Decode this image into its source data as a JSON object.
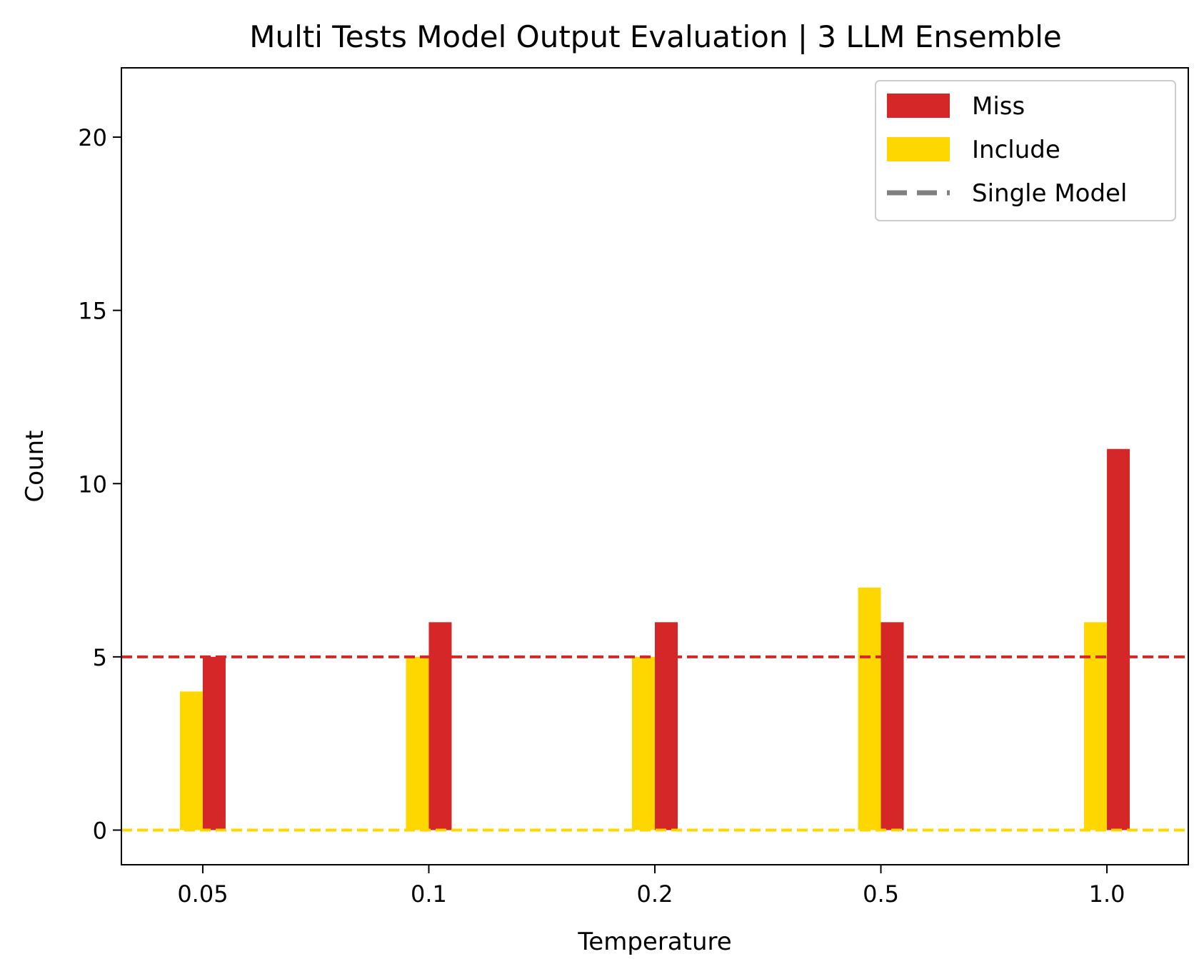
{
  "chart_data": {
    "type": "bar",
    "title": "Multi Tests Model Output Evaluation | 3 LLM Ensemble",
    "xlabel": "Temperature",
    "ylabel": "Count",
    "categories": [
      "0.05",
      "0.1",
      "0.2",
      "0.5",
      "1.0"
    ],
    "series": [
      {
        "name": "Include",
        "color": "#FFD700",
        "values": [
          4,
          5,
          5,
          7,
          6
        ]
      },
      {
        "name": "Miss",
        "color": "#D62728",
        "values": [
          5,
          6,
          6,
          6,
          11
        ]
      }
    ],
    "reference_lines": [
      {
        "name": "Single Model",
        "series": "Miss",
        "value": 5,
        "color": "#D62728",
        "style": "dashed"
      },
      {
        "name": "Single Model",
        "series": "Include",
        "value": 0,
        "color": "#FFD700",
        "style": "dashed"
      }
    ],
    "ylim": [
      -1,
      22
    ],
    "yticks": [
      0,
      5,
      10,
      15,
      20
    ],
    "legend": {
      "position": "top-right",
      "entries": [
        {
          "label": "Miss",
          "kind": "patch",
          "color": "#D62728"
        },
        {
          "label": "Include",
          "kind": "patch",
          "color": "#FFD700"
        },
        {
          "label": "Single Model",
          "kind": "dashed-line",
          "color": "#808080"
        }
      ]
    },
    "grid": false
  }
}
